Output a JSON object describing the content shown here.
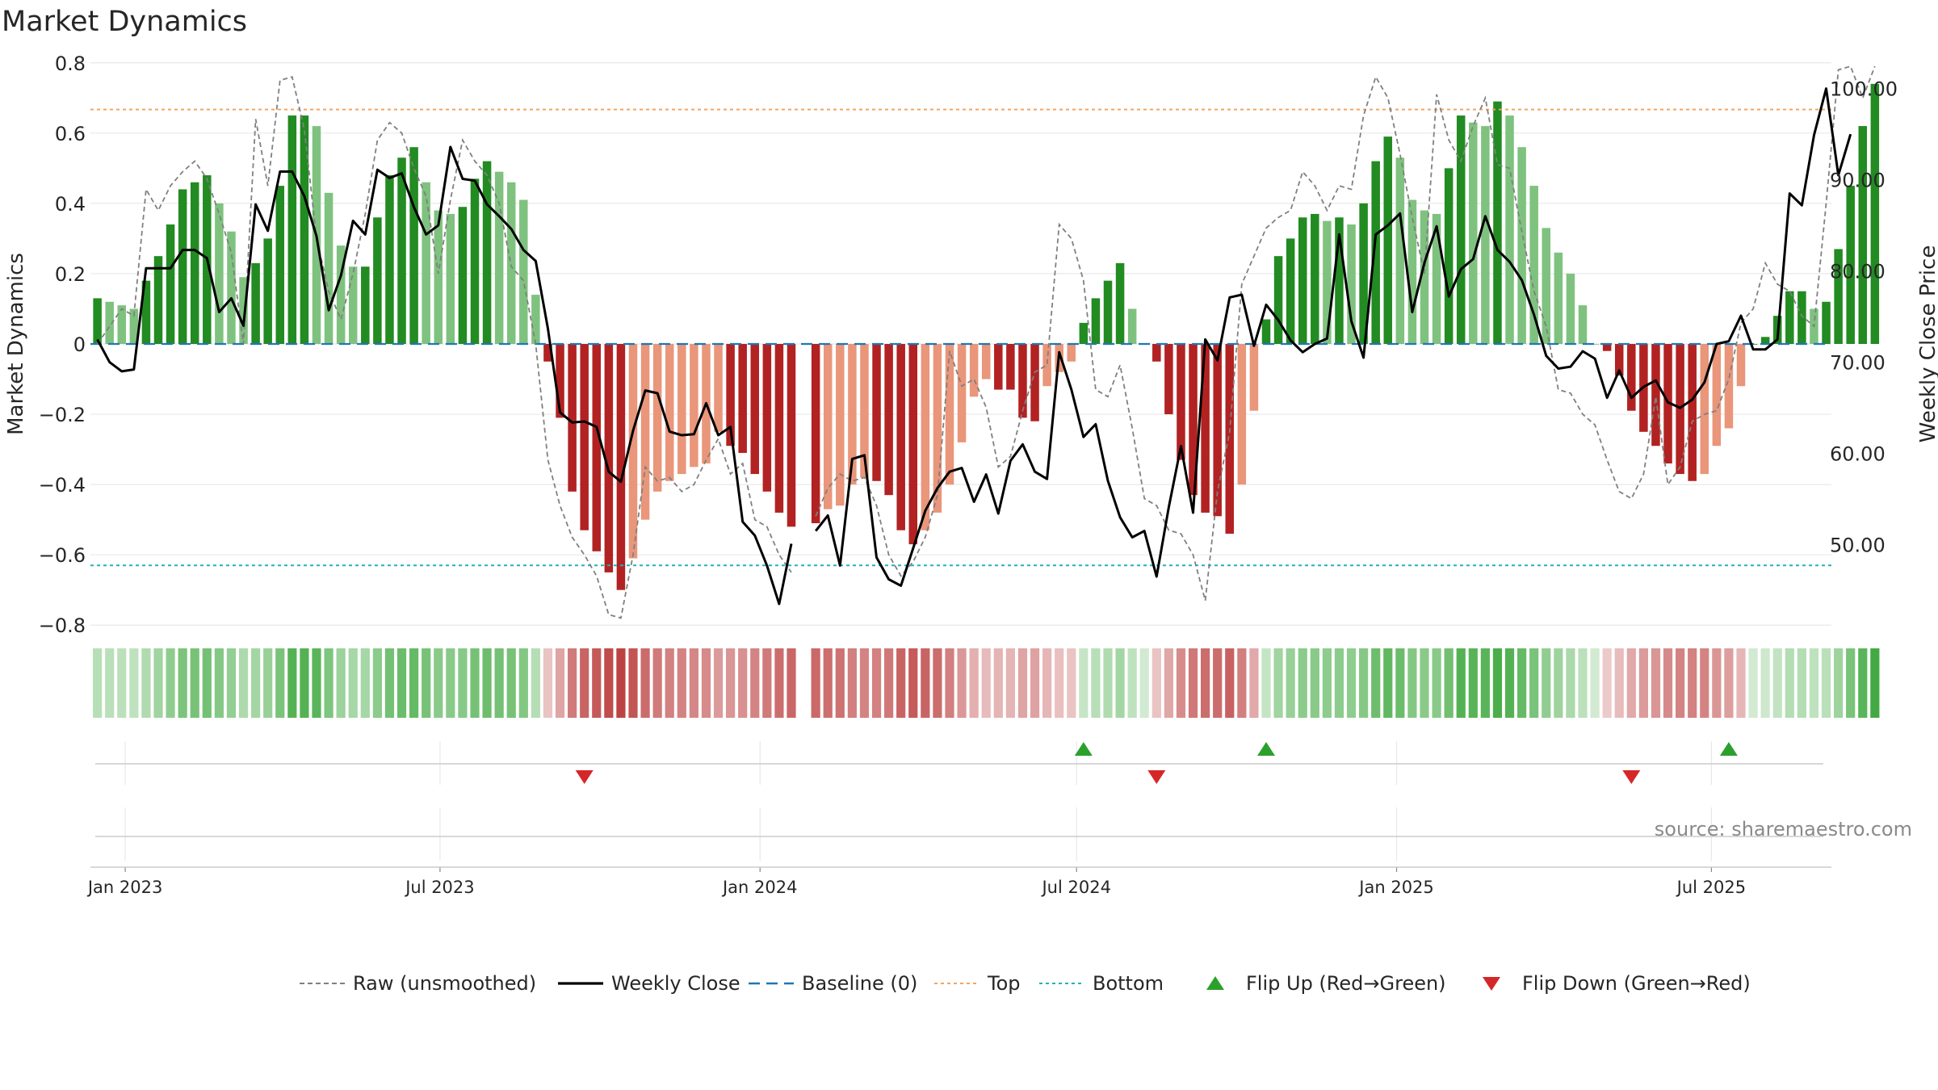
{
  "chart_data": {
    "type": "bar",
    "title": "Market Dynamics",
    "ylabel": "Market Dynamics",
    "y2label": "Weekly Close Price",
    "source": "source: sharemaestro.com",
    "ylim": [
      -0.85,
      0.85
    ],
    "y2lim": [
      39.25,
      104.75
    ],
    "yticks": [
      0.8,
      0.6,
      0.4,
      0.2,
      0,
      -0.2,
      -0.4,
      -0.6,
      -0.8
    ],
    "ytick_labels": [
      "0.8",
      "0.6",
      "0.4",
      "0.2",
      "0",
      "−0.2",
      "−0.4",
      "−0.6",
      "−0.8"
    ],
    "y2ticks": [
      100,
      90,
      80,
      70,
      60,
      50
    ],
    "y2tick_labels": [
      "100.00",
      "90.00",
      "80.00",
      "70.00",
      "60.00",
      "50.00"
    ],
    "xlim": [
      "2022-12-12",
      "2025-09-08"
    ],
    "xticks": [
      "2023-01-01",
      "2023-07-01",
      "2024-01-01",
      "2024-07-01",
      "2025-01-01",
      "2025-07-01"
    ],
    "xtick_labels": [
      "Jan 2023",
      "Jul 2023",
      "Jan 2024",
      "Jul 2024",
      "Jan 2025",
      "Jul 2025"
    ],
    "top_level": 0.667,
    "bottom_level": -0.63,
    "baseline": 0,
    "grid": true,
    "legend_position": "bottom-center",
    "colors": {
      "strong_green": "#228b22",
      "light_green": "#7fc27f",
      "strong_red": "#b22222",
      "light_red": "#e9967a",
      "top_line": "#f4a460",
      "bottom_line": "#20b2bb",
      "baseline": "#1f77b4",
      "raw_line": "#808080",
      "close_line": "#000000",
      "flip_up": "#2ca02c",
      "flip_down": "#d62728"
    },
    "start_date": "2022-12-16",
    "week_step_days": 7,
    "bar_values": [
      0.13,
      0.12,
      0.11,
      0.1,
      0.18,
      0.25,
      0.34,
      0.44,
      0.46,
      0.48,
      0.4,
      0.32,
      0.19,
      0.23,
      0.3,
      0.45,
      0.65,
      0.65,
      0.62,
      0.43,
      0.28,
      0.22,
      0.22,
      0.36,
      0.48,
      0.53,
      0.56,
      0.46,
      0.38,
      0.37,
      0.39,
      0.47,
      0.52,
      0.49,
      0.46,
      0.41,
      0.14,
      -0.05,
      -0.21,
      -0.42,
      -0.53,
      -0.59,
      -0.65,
      -0.7,
      -0.61,
      -0.5,
      -0.42,
      -0.39,
      -0.37,
      -0.35,
      -0.34,
      -0.25,
      -0.29,
      -0.31,
      -0.37,
      -0.42,
      -0.48,
      -0.52,
      null,
      -0.51,
      -0.47,
      -0.46,
      -0.4,
      -0.38,
      -0.39,
      -0.43,
      -0.53,
      -0.57,
      -0.53,
      -0.48,
      -0.4,
      -0.28,
      -0.15,
      -0.1,
      -0.13,
      -0.13,
      -0.21,
      -0.22,
      -0.12,
      -0.08,
      -0.05,
      0.06,
      0.13,
      0.18,
      0.23,
      0.1,
      0.0,
      -0.05,
      -0.2,
      -0.33,
      -0.43,
      -0.48,
      -0.49,
      -0.54,
      -0.4,
      -0.19,
      0.07,
      0.25,
      0.3,
      0.36,
      0.37,
      0.35,
      0.36,
      0.34,
      0.4,
      0.52,
      0.59,
      0.53,
      0.41,
      0.38,
      0.37,
      0.5,
      0.65,
      0.63,
      0.62,
      0.69,
      0.65,
      0.56,
      0.45,
      0.33,
      0.26,
      0.2,
      0.11,
      0.0,
      -0.02,
      -0.09,
      -0.19,
      -0.25,
      -0.29,
      -0.34,
      -0.37,
      -0.39,
      -0.37,
      -0.29,
      -0.24,
      -0.12,
      0.0,
      0.02,
      0.08,
      0.15,
      0.15,
      0.1,
      0.12,
      0.27,
      0.45,
      0.62,
      0.74
    ],
    "raw_values": [
      0.0,
      0.05,
      0.1,
      0.08,
      0.44,
      0.38,
      0.45,
      0.49,
      0.52,
      0.47,
      0.37,
      0.26,
      0.0,
      0.64,
      0.45,
      0.75,
      0.76,
      0.61,
      0.3,
      0.15,
      0.07,
      0.2,
      0.37,
      0.58,
      0.63,
      0.6,
      0.5,
      0.42,
      0.2,
      0.41,
      0.58,
      0.52,
      0.48,
      0.4,
      0.22,
      0.18,
      0.0,
      -0.33,
      -0.46,
      -0.55,
      -0.6,
      -0.66,
      -0.77,
      -0.78,
      -0.6,
      -0.35,
      -0.39,
      -0.38,
      -0.42,
      -0.4,
      -0.33,
      -0.27,
      -0.37,
      -0.34,
      -0.5,
      -0.52,
      -0.6,
      -0.65,
      null,
      -0.49,
      -0.41,
      -0.37,
      -0.39,
      -0.38,
      -0.46,
      -0.6,
      -0.66,
      -0.62,
      -0.55,
      -0.43,
      -0.02,
      -0.12,
      -0.1,
      -0.18,
      -0.35,
      -0.32,
      -0.19,
      -0.08,
      -0.06,
      0.34,
      0.3,
      0.18,
      -0.13,
      -0.15,
      -0.06,
      -0.24,
      -0.44,
      -0.46,
      -0.53,
      -0.54,
      -0.6,
      -0.73,
      -0.42,
      -0.25,
      0.17,
      0.25,
      0.33,
      0.36,
      0.38,
      0.49,
      0.45,
      0.38,
      0.45,
      0.44,
      0.65,
      0.76,
      0.7,
      0.54,
      0.36,
      0.2,
      0.71,
      0.58,
      0.52,
      0.62,
      0.7,
      0.51,
      0.5,
      0.32,
      0.15,
      0.05,
      -0.13,
      -0.14,
      -0.2,
      -0.23,
      -0.33,
      -0.42,
      -0.44,
      -0.37,
      -0.15,
      -0.4,
      -0.35,
      -0.22,
      -0.2,
      -0.19,
      -0.1,
      0.06,
      0.1,
      0.23,
      0.17,
      0.15,
      0.08,
      0.05,
      0.4,
      0.78,
      0.79,
      0.7,
      0.79
    ],
    "close_values": [
      72.5,
      70.0,
      69.0,
      69.2,
      80.3,
      80.3,
      80.3,
      82.3,
      82.3,
      81.4,
      75.5,
      77.0,
      74.0,
      87.3,
      84.4,
      90.9,
      90.9,
      88.2,
      83.8,
      75.7,
      79.5,
      85.5,
      84.0,
      91.1,
      90.2,
      90.7,
      87.0,
      84.0,
      85.0,
      93.6,
      90.1,
      89.9,
      87.3,
      86.0,
      84.6,
      82.3,
      81.1,
      73.7,
      64.5,
      63.4,
      63.5,
      62.9,
      58.0,
      56.9,
      62.5,
      66.9,
      66.6,
      62.4,
      62.0,
      62.1,
      65.5,
      62.0,
      62.9,
      52.5,
      51.0,
      47.7,
      43.5,
      50.1,
      null,
      51.5,
      53.2,
      47.7,
      59.4,
      59.8,
      48.6,
      46.2,
      45.5,
      49.6,
      53.7,
      56.2,
      58.0,
      58.4,
      54.7,
      57.7,
      53.4,
      59.2,
      61.0,
      58.0,
      57.2,
      71.1,
      67.0,
      61.8,
      63.2,
      57.0,
      53.0,
      50.8,
      51.5,
      46.5,
      54.1,
      60.8,
      53.5,
      72.5,
      70.2,
      77.1,
      77.4,
      71.8,
      76.3,
      74.6,
      72.4,
      71.1,
      72.0,
      72.6,
      84.0,
      74.5,
      70.5,
      84.0,
      85.0,
      86.3,
      75.5,
      80.9,
      84.9,
      77.2,
      80.2,
      81.3,
      86.0,
      82.3,
      81.0,
      79.0,
      75.2,
      70.7,
      69.3,
      69.5,
      71.2,
      70.4,
      66.1,
      69.1,
      66.1,
      67.3,
      68.0,
      65.6,
      65.0,
      65.9,
      67.8,
      72.0,
      72.3,
      75.1,
      71.4,
      71.4,
      72.5,
      88.5,
      87.2,
      94.9,
      100.0,
      90.5,
      95.0
    ],
    "flip_up_dates": [
      "2024-07-05",
      "2024-10-18",
      "2025-07-11"
    ],
    "flip_down_dates": [
      "2023-09-22",
      "2024-08-16",
      "2025-05-16"
    ],
    "legend": [
      {
        "label": "Raw (unsmoothed)",
        "kind": "dashed-line",
        "color": "#808080"
      },
      {
        "label": "Weekly Close",
        "kind": "solid-line",
        "color": "#000000"
      },
      {
        "label": "Baseline (0)",
        "kind": "dash-line",
        "color": "#1f77b4"
      },
      {
        "label": "Top",
        "kind": "dotted-line",
        "color": "#f4a460"
      },
      {
        "label": "Bottom",
        "kind": "dotted-line",
        "color": "#20b2bb"
      },
      {
        "label": "Flip Up (Red→Green)",
        "kind": "triangle-up",
        "color": "#2ca02c"
      },
      {
        "label": "Flip Down (Green→Red)",
        "kind": "triangle-down",
        "color": "#d62728"
      }
    ]
  }
}
